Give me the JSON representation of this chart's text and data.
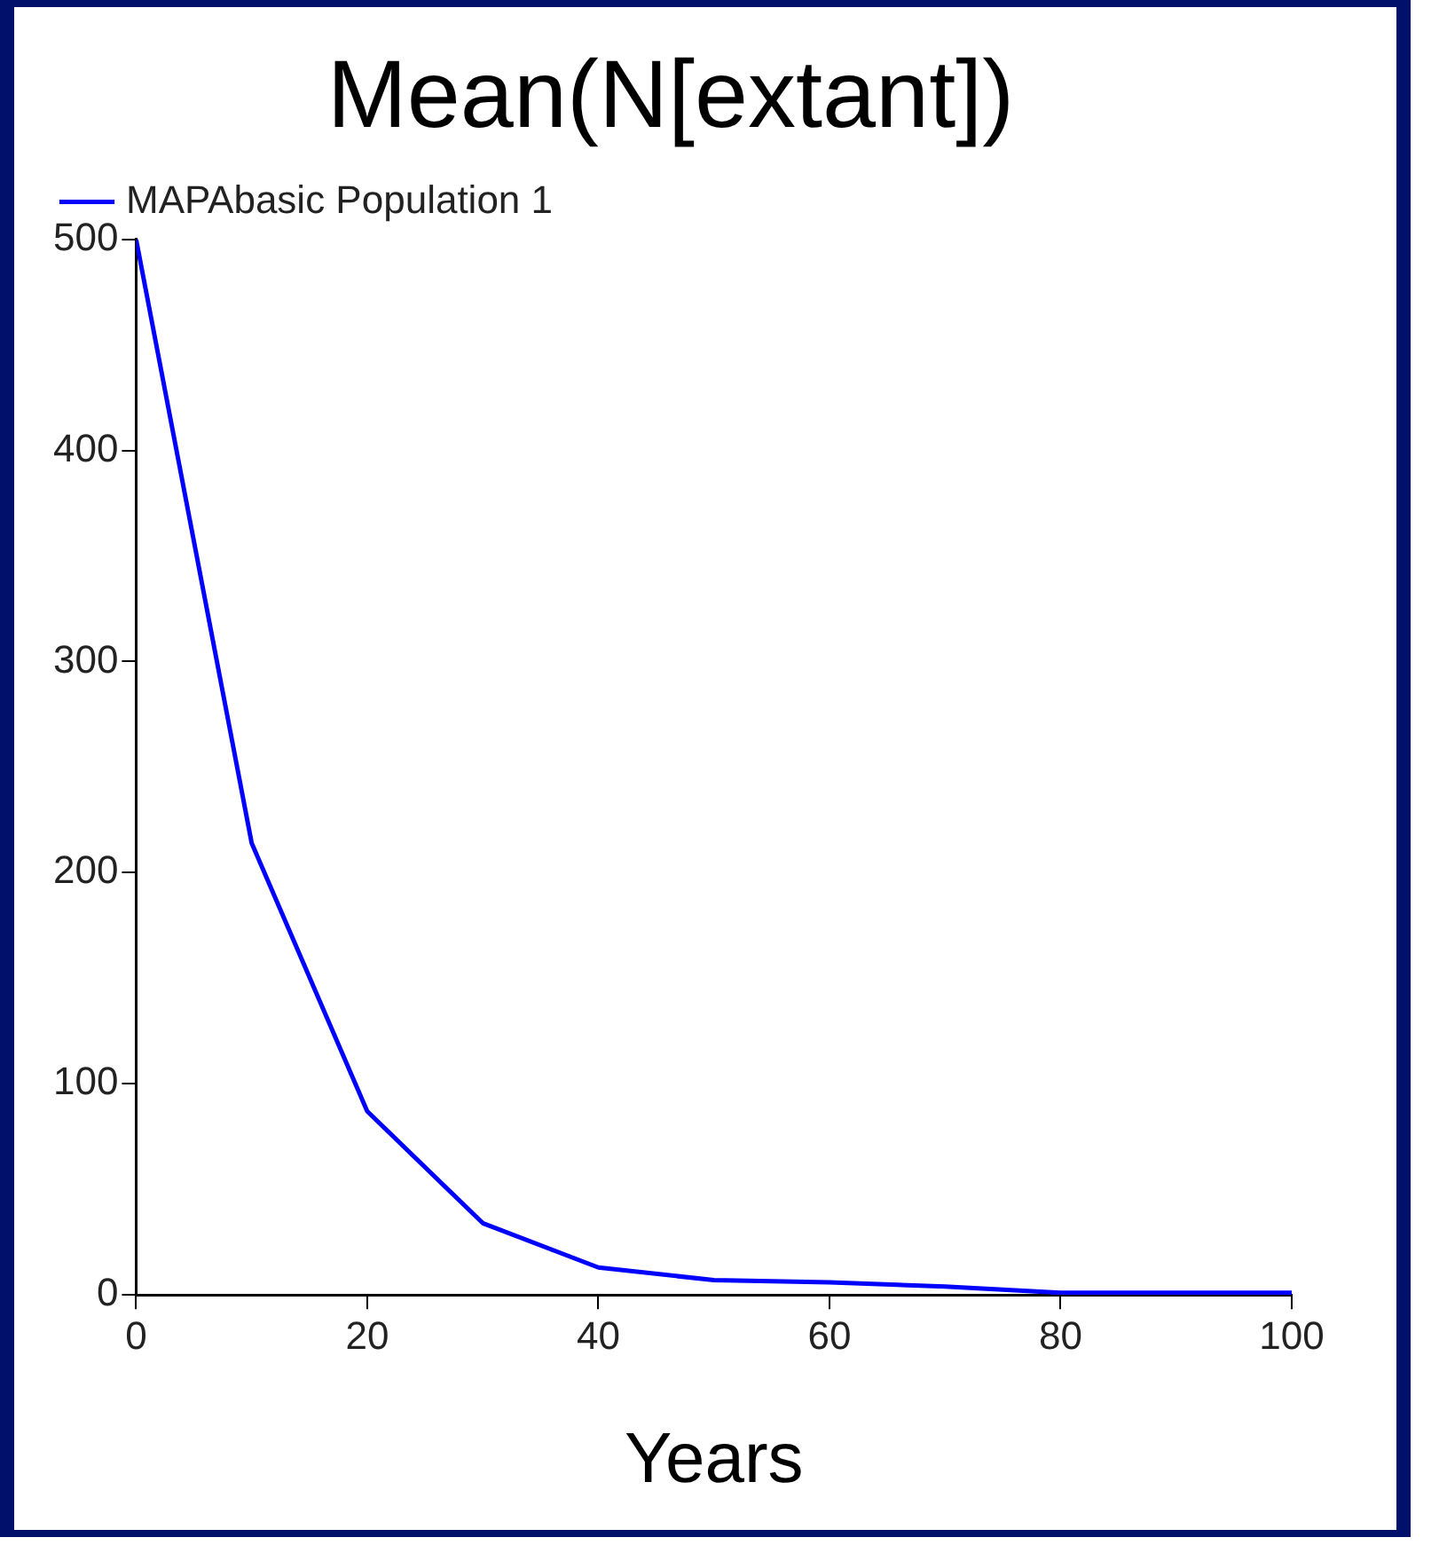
{
  "chart_data": {
    "type": "line",
    "title": "Mean(N[extant])",
    "xlabel": "Years",
    "x": [
      0,
      10,
      20,
      30,
      40,
      50,
      60,
      70,
      80,
      90,
      100
    ],
    "series": [
      {
        "name": "MAPAbasic Population 1",
        "color": "#0000ff",
        "values": [
          500,
          214,
          87,
          34,
          13,
          7,
          6,
          4,
          1,
          1,
          1
        ]
      }
    ],
    "xlim": [
      0,
      100
    ],
    "xticks": [
      0,
      20,
      40,
      60,
      80,
      100
    ],
    "ylim": [
      0,
      500
    ],
    "yticks": [
      0,
      100,
      200,
      300,
      400,
      500
    ],
    "grid": false,
    "legend": "top left",
    "marker": "none",
    "line_style": "solid"
  }
}
